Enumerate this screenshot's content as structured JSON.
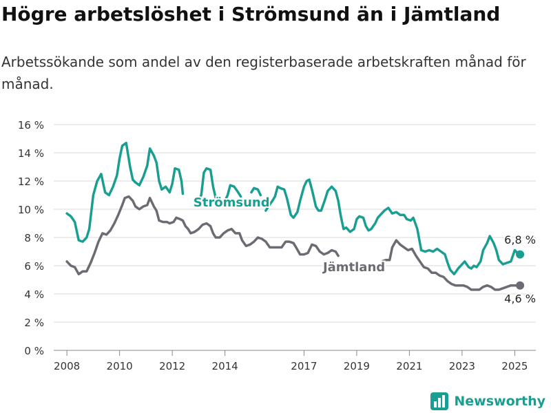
{
  "title": "Högre arbetslöshet i Strömsund än i Jämtland",
  "subtitle": "Arbetssökande som andel av den registerbaserade arbetskraften månad för månad.",
  "brand": "Newsworthy",
  "colors": {
    "stromsund": "#1a9e91",
    "jamtland": "#6b6b73",
    "grid": "#d9d9d9",
    "brand": "#1a9e91"
  },
  "chart_data": {
    "type": "line",
    "title": "Högre arbetslöshet i Strömsund än i Jämtland",
    "xlabel": "",
    "ylabel": "",
    "xlim": [
      2007.5,
      2025.8
    ],
    "ylim": [
      0,
      16
    ],
    "grid": true,
    "legend": "inline labels",
    "y_ticks": [
      "0 %",
      "2 %",
      "4 %",
      "6 %",
      "8 %",
      "10 %",
      "12 %",
      "14 %",
      "16 %"
    ],
    "y_tick_values": [
      0,
      2,
      4,
      6,
      8,
      10,
      12,
      14,
      16
    ],
    "x_ticks": [
      "2008",
      "2010",
      "2012",
      "2014",
      "2017",
      "2019",
      "2021",
      "2023",
      "2025"
    ],
    "x_tick_values": [
      2008,
      2010,
      2012,
      2014,
      2017,
      2019,
      2021,
      2023,
      2025
    ],
    "end_labels": {
      "stromsund": "6,8 %",
      "jamtland": "4,6 %"
    },
    "series": [
      {
        "name": "Strömsund",
        "points": [
          [
            2008.0,
            9.7
          ],
          [
            2008.15,
            9.5
          ],
          [
            2008.3,
            9.1
          ],
          [
            2008.45,
            7.8
          ],
          [
            2008.6,
            7.7
          ],
          [
            2008.75,
            8.0
          ],
          [
            2008.85,
            8.6
          ],
          [
            2009.0,
            11.0
          ],
          [
            2009.15,
            12.0
          ],
          [
            2009.3,
            12.5
          ],
          [
            2009.45,
            11.2
          ],
          [
            2009.6,
            11.0
          ],
          [
            2009.75,
            11.6
          ],
          [
            2009.9,
            12.4
          ],
          [
            2010.0,
            13.6
          ],
          [
            2010.1,
            14.5
          ],
          [
            2010.25,
            14.7
          ],
          [
            2010.4,
            13.0
          ],
          [
            2010.5,
            12.1
          ],
          [
            2010.6,
            11.9
          ],
          [
            2010.75,
            11.7
          ],
          [
            2010.9,
            12.3
          ],
          [
            2011.05,
            13.1
          ],
          [
            2011.15,
            14.3
          ],
          [
            2011.3,
            13.8
          ],
          [
            2011.4,
            13.3
          ],
          [
            2011.5,
            12.0
          ],
          [
            2011.6,
            11.4
          ],
          [
            2011.75,
            11.6
          ],
          [
            2011.9,
            11.2
          ],
          [
            2012.0,
            11.8
          ],
          [
            2012.1,
            12.9
          ],
          [
            2012.25,
            12.8
          ],
          [
            2012.35,
            12.0
          ],
          [
            2012.4,
            11.1
          ]
        ],
        "segments": [
          [
            [
              2013.0,
              10.6
            ],
            [
              2013.1,
              11.0
            ],
            [
              2013.2,
              12.6
            ],
            [
              2013.3,
              12.9
            ],
            [
              2013.45,
              12.8
            ],
            [
              2013.55,
              11.6
            ],
            [
              2013.65,
              10.8
            ]
          ],
          [
            [
              2013.95,
              10.4
            ],
            [
              2014.1,
              11.0
            ],
            [
              2014.2,
              11.7
            ],
            [
              2014.35,
              11.6
            ],
            [
              2014.5,
              11.2
            ],
            [
              2014.6,
              10.9
            ]
          ],
          [
            [
              2015.0,
              11.2
            ],
            [
              2015.1,
              11.5
            ],
            [
              2015.25,
              11.4
            ],
            [
              2015.35,
              11.0
            ]
          ],
          [
            [
              2015.55,
              9.9
            ],
            [
              2015.65,
              10.2
            ],
            [
              2015.8,
              10.6
            ],
            [
              2015.9,
              10.9
            ],
            [
              2016.0,
              11.6
            ],
            [
              2016.1,
              11.5
            ],
            [
              2016.25,
              11.4
            ],
            [
              2016.35,
              10.8
            ],
            [
              2016.5,
              9.6
            ],
            [
              2016.6,
              9.4
            ],
            [
              2016.75,
              9.8
            ],
            [
              2016.85,
              10.6
            ],
            [
              2017.0,
              11.6
            ],
            [
              2017.1,
              12.0
            ],
            [
              2017.2,
              12.1
            ],
            [
              2017.3,
              11.4
            ],
            [
              2017.45,
              10.2
            ],
            [
              2017.55,
              9.9
            ],
            [
              2017.65,
              9.9
            ],
            [
              2017.8,
              10.7
            ],
            [
              2017.9,
              11.3
            ],
            [
              2018.05,
              11.6
            ],
            [
              2018.2,
              11.3
            ],
            [
              2018.3,
              10.6
            ],
            [
              2018.4,
              9.5
            ],
            [
              2018.5,
              8.6
            ],
            [
              2018.6,
              8.7
            ],
            [
              2018.75,
              8.4
            ],
            [
              2018.9,
              8.6
            ],
            [
              2019.0,
              9.3
            ],
            [
              2019.1,
              9.5
            ],
            [
              2019.25,
              9.4
            ],
            [
              2019.35,
              8.8
            ],
            [
              2019.45,
              8.5
            ],
            [
              2019.55,
              8.6
            ],
            [
              2019.7,
              9.0
            ],
            [
              2019.8,
              9.4
            ],
            [
              2019.9,
              9.6
            ],
            [
              2020.05,
              9.9
            ],
            [
              2020.2,
              10.1
            ],
            [
              2020.35,
              9.7
            ],
            [
              2020.5,
              9.8
            ],
            [
              2020.65,
              9.6
            ],
            [
              2020.8,
              9.6
            ],
            [
              2020.9,
              9.3
            ],
            [
              2021.05,
              9.2
            ],
            [
              2021.15,
              9.4
            ],
            [
              2021.3,
              8.6
            ],
            [
              2021.45,
              7.1
            ],
            [
              2021.6,
              7.0
            ],
            [
              2021.75,
              7.1
            ],
            [
              2021.9,
              7.0
            ],
            [
              2022.05,
              7.2
            ],
            [
              2022.2,
              7.0
            ],
            [
              2022.35,
              6.8
            ],
            [
              2022.45,
              6.2
            ],
            [
              2022.55,
              5.7
            ],
            [
              2022.7,
              5.4
            ],
            [
              2022.85,
              5.8
            ],
            [
              2023.0,
              6.1
            ],
            [
              2023.1,
              6.3
            ],
            [
              2023.25,
              5.9
            ],
            [
              2023.35,
              5.8
            ],
            [
              2023.45,
              6.0
            ],
            [
              2023.55,
              5.9
            ],
            [
              2023.7,
              6.3
            ],
            [
              2023.8,
              7.1
            ],
            [
              2023.95,
              7.6
            ],
            [
              2024.05,
              8.1
            ],
            [
              2024.2,
              7.6
            ],
            [
              2024.3,
              7.1
            ],
            [
              2024.4,
              6.4
            ],
            [
              2024.55,
              6.1
            ],
            [
              2024.7,
              6.2
            ],
            [
              2024.85,
              6.3
            ],
            [
              2025.0,
              7.1
            ],
            [
              2025.1,
              6.9
            ],
            [
              2025.2,
              6.8
            ]
          ]
        ]
      },
      {
        "name": "Jämtland",
        "points": [
          [
            2008.0,
            6.3
          ],
          [
            2008.15,
            6.0
          ],
          [
            2008.3,
            5.9
          ],
          [
            2008.45,
            5.4
          ],
          [
            2008.6,
            5.6
          ],
          [
            2008.75,
            5.6
          ],
          [
            2008.9,
            6.2
          ],
          [
            2009.05,
            6.9
          ],
          [
            2009.2,
            7.7
          ],
          [
            2009.35,
            8.3
          ],
          [
            2009.5,
            8.2
          ],
          [
            2009.65,
            8.5
          ],
          [
            2009.8,
            9.0
          ],
          [
            2009.95,
            9.6
          ],
          [
            2010.1,
            10.3
          ],
          [
            2010.2,
            10.8
          ],
          [
            2010.35,
            10.9
          ],
          [
            2010.5,
            10.6
          ],
          [
            2010.6,
            10.2
          ],
          [
            2010.75,
            10.0
          ],
          [
            2010.9,
            10.2
          ],
          [
            2011.05,
            10.3
          ],
          [
            2011.15,
            10.8
          ],
          [
            2011.3,
            10.2
          ],
          [
            2011.4,
            9.9
          ],
          [
            2011.5,
            9.2
          ],
          [
            2011.65,
            9.1
          ],
          [
            2011.8,
            9.1
          ],
          [
            2011.9,
            9.0
          ],
          [
            2012.05,
            9.1
          ],
          [
            2012.15,
            9.4
          ],
          [
            2012.3,
            9.3
          ],
          [
            2012.4,
            9.2
          ],
          [
            2012.5,
            8.8
          ],
          [
            2012.6,
            8.6
          ],
          [
            2012.7,
            8.3
          ],
          [
            2012.85,
            8.4
          ],
          [
            2013.0,
            8.6
          ],
          [
            2013.15,
            8.9
          ],
          [
            2013.3,
            9.0
          ],
          [
            2013.45,
            8.8
          ],
          [
            2013.55,
            8.3
          ],
          [
            2013.65,
            8.0
          ],
          [
            2013.8,
            8.0
          ],
          [
            2013.95,
            8.3
          ],
          [
            2014.1,
            8.5
          ],
          [
            2014.25,
            8.6
          ],
          [
            2014.4,
            8.3
          ],
          [
            2014.55,
            8.3
          ],
          [
            2014.65,
            7.8
          ],
          [
            2014.8,
            7.4
          ],
          [
            2014.95,
            7.5
          ],
          [
            2015.1,
            7.7
          ],
          [
            2015.25,
            8.0
          ],
          [
            2015.4,
            7.9
          ],
          [
            2015.55,
            7.7
          ],
          [
            2015.7,
            7.3
          ],
          [
            2015.85,
            7.3
          ],
          [
            2016.0,
            7.3
          ],
          [
            2016.15,
            7.3
          ],
          [
            2016.3,
            7.7
          ],
          [
            2016.45,
            7.7
          ],
          [
            2016.6,
            7.6
          ],
          [
            2016.7,
            7.3
          ],
          [
            2016.85,
            6.8
          ],
          [
            2017.0,
            6.8
          ],
          [
            2017.15,
            6.9
          ],
          [
            2017.3,
            7.5
          ],
          [
            2017.45,
            7.4
          ],
          [
            2017.6,
            7.0
          ],
          [
            2017.75,
            6.8
          ],
          [
            2017.9,
            6.9
          ],
          [
            2018.05,
            7.1
          ],
          [
            2018.2,
            7.0
          ],
          [
            2018.3,
            6.7
          ]
        ],
        "segments": [
          [
            [
              2019.95,
              6.3
            ],
            [
              2020.1,
              6.4
            ],
            [
              2020.25,
              6.4
            ],
            [
              2020.35,
              7.3
            ],
            [
              2020.5,
              7.8
            ],
            [
              2020.65,
              7.5
            ],
            [
              2020.8,
              7.3
            ],
            [
              2020.95,
              7.1
            ],
            [
              2021.1,
              7.2
            ],
            [
              2021.25,
              6.7
            ],
            [
              2021.4,
              6.3
            ],
            [
              2021.55,
              5.9
            ],
            [
              2021.7,
              5.8
            ],
            [
              2021.85,
              5.5
            ],
            [
              2022.0,
              5.5
            ],
            [
              2022.15,
              5.3
            ],
            [
              2022.3,
              5.2
            ],
            [
              2022.45,
              4.9
            ],
            [
              2022.6,
              4.7
            ],
            [
              2022.75,
              4.6
            ],
            [
              2022.9,
              4.6
            ],
            [
              2023.05,
              4.6
            ],
            [
              2023.2,
              4.5
            ],
            [
              2023.35,
              4.3
            ],
            [
              2023.5,
              4.3
            ],
            [
              2023.65,
              4.3
            ],
            [
              2023.8,
              4.5
            ],
            [
              2023.95,
              4.6
            ],
            [
              2024.1,
              4.5
            ],
            [
              2024.25,
              4.3
            ],
            [
              2024.4,
              4.3
            ],
            [
              2024.55,
              4.4
            ],
            [
              2024.7,
              4.5
            ],
            [
              2024.85,
              4.6
            ],
            [
              2025.0,
              4.6
            ],
            [
              2025.2,
              4.6
            ]
          ]
        ]
      }
    ],
    "inline_labels": {
      "stromsund": "Strömsund",
      "jamtland": "Jämtland"
    }
  }
}
